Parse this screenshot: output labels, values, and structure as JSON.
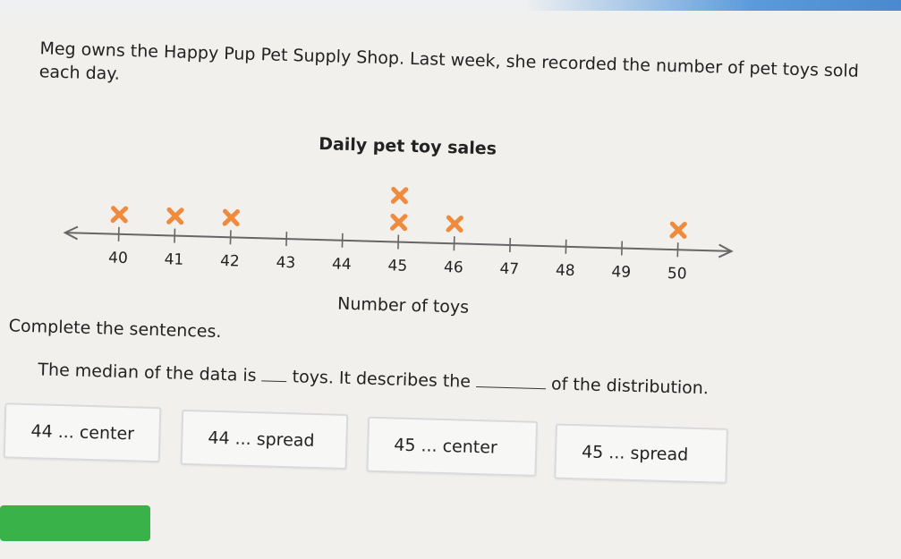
{
  "intro": "Meg owns the Happy Pup Pet Supply Shop. Last week, she recorded the number of pet toys sold each day.",
  "plot": {
    "title": "Daily pet toy sales",
    "xlabel": "Number of toys",
    "marker_color": "#f08a3c"
  },
  "chart_data": {
    "type": "scatter",
    "title": "Daily pet toy sales",
    "xlabel": "Number of toys",
    "ylabel": "",
    "xlim": [
      40,
      50
    ],
    "ticks": [
      "40",
      "41",
      "42",
      "43",
      "44",
      "45",
      "46",
      "47",
      "48",
      "49",
      "50"
    ],
    "x": [
      40,
      41,
      42,
      45,
      45,
      46,
      50
    ],
    "y": [
      1,
      1,
      1,
      1,
      2,
      1,
      1
    ]
  },
  "instructions": "Complete the sentences.",
  "sentence": {
    "part1": "The median of the data is ",
    "part2": " toys. It describes the ",
    "part3": " of the distribution."
  },
  "options": [
    "44 ... center",
    "44 ... spread",
    "45 ... center",
    "45 ... spread"
  ],
  "colors": {
    "submit": "#39b24a",
    "accent": "#5b9bdb"
  }
}
